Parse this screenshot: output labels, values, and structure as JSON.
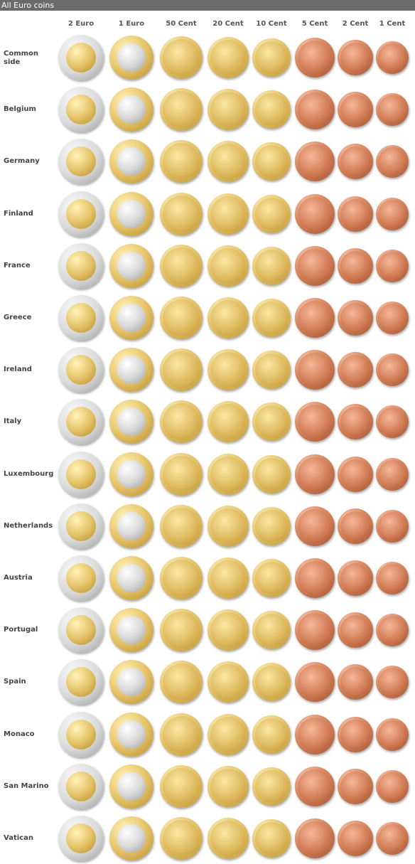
{
  "window": {
    "title": "All Euro coins"
  },
  "denominations": [
    "2 Euro",
    "1 Euro",
    "50 Cent",
    "20 Cent",
    "10 Cent",
    "5 Cent",
    "2 Cent",
    "1 Cent"
  ],
  "rows": [
    {
      "label": "Common side"
    },
    {
      "label": "Belgium"
    },
    {
      "label": "Germany"
    },
    {
      "label": "Finland"
    },
    {
      "label": "France"
    },
    {
      "label": "Greece"
    },
    {
      "label": "Ireland"
    },
    {
      "label": "Italy"
    },
    {
      "label": "Luxembourg"
    },
    {
      "label": "Netherlands"
    },
    {
      "label": "Austria"
    },
    {
      "label": "Portugal"
    },
    {
      "label": "Spain"
    },
    {
      "label": "Monaco"
    },
    {
      "label": "San Marino"
    },
    {
      "label": "Vatican"
    }
  ],
  "colors": {
    "titlebar": "#6b6b6b",
    "gold": "#e0bd60",
    "copper": "#d17d55",
    "silver": "#d9d9d9"
  }
}
